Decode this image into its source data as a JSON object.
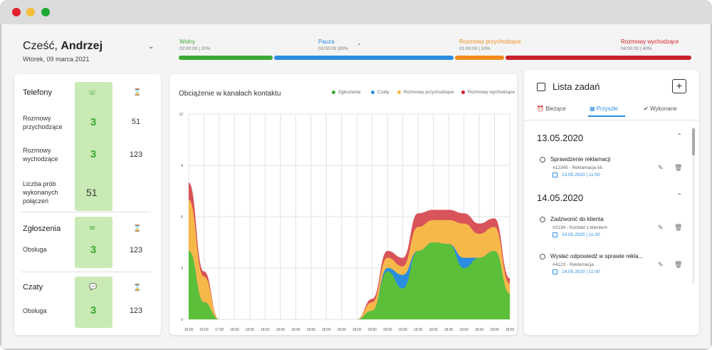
{
  "header": {
    "greeting_prefix": "Cześć, ",
    "greeting_name": "Andrzej",
    "date": "Wtorek, 09 marca 2021"
  },
  "statuses": [
    {
      "label": "Wolny",
      "time": "02:00:00 | 20%",
      "color": "#3aaa35"
    },
    {
      "label": "Pauza",
      "time": "03:00:00 |30%",
      "color": "#2a8de0"
    },
    {
      "label": "Rozmowy przychodzące",
      "time": "01:00:00 | 10%",
      "color": "#f08c1e"
    },
    {
      "label": "Rozmowy wychodzące",
      "time": "04:00:00 | 40%",
      "color": "#d0202a"
    }
  ],
  "left": {
    "phones": {
      "title": "Telefony",
      "rows": [
        {
          "label": "Rozmowy przychodzące",
          "count": "3",
          "value": "51"
        },
        {
          "label": "Rozmowy wychodzące",
          "count": "3",
          "value": "123"
        },
        {
          "label": "Liczba prób wykonanych połączeń",
          "value": "51"
        }
      ]
    },
    "tickets": {
      "title": "Zgłoszenia",
      "label": "Obsługa",
      "count": "3",
      "value": "123"
    },
    "chats": {
      "title": "Czaty",
      "label": "Obsługa",
      "count": "3",
      "value": "123"
    }
  },
  "chart": {
    "title": "Obciążenie w kanałach kontaktu",
    "legend": [
      "Zgłoszenia",
      "Czaty",
      "Rozmowy przychodzące",
      "Rozmowy wychodzące"
    ],
    "colors": [
      "#5cbf3a",
      "#2a8de0",
      "#f7b84a",
      "#d9535a"
    ]
  },
  "chart_data": {
    "type": "area",
    "title": "Obciążenie w kanałach kontaktu",
    "y_ticks": [
      "0",
      "3",
      "6",
      "9",
      "12"
    ],
    "ylim": [
      0,
      12
    ],
    "x_ticks": [
      "15:00",
      "16:00",
      "17:00",
      "18:00",
      "18:00",
      "18:00",
      "18:00",
      "18:00",
      "18:00",
      "18:00",
      "18:00",
      "18:00",
      "18:00",
      "18:00",
      "18:00",
      "18:00",
      "18:00",
      "18:00",
      "18:00",
      "18:00",
      "18:00",
      "18:00"
    ],
    "x": [
      0,
      1,
      2,
      3,
      4,
      5,
      6,
      7,
      8,
      9,
      10,
      11,
      12,
      13,
      14,
      15,
      16,
      17,
      18,
      19,
      20,
      21
    ],
    "series": [
      {
        "name": "Zgłoszenia",
        "values": [
          4.0,
          1.0,
          0.0,
          0,
          0,
          0,
          0,
          0,
          0,
          0,
          0,
          0,
          0.5,
          2.8,
          1.8,
          4.0,
          4.5,
          4.4,
          3.0,
          3.6,
          4.0,
          1.5
        ]
      },
      {
        "name": "Czaty",
        "values": [
          0.0,
          0.0,
          0.0,
          0,
          0,
          0,
          0,
          0,
          0,
          0,
          0,
          0,
          0.0,
          0.2,
          0.8,
          0.0,
          0.0,
          0.0,
          0.6,
          0.0,
          0.0,
          0.0
        ]
      },
      {
        "name": "Rozmowy przychodzące",
        "values": [
          3.0,
          1.5,
          0.0,
          0,
          0,
          0,
          0,
          0,
          0,
          0,
          0,
          0,
          0.5,
          0.6,
          0.5,
          1.4,
          1.3,
          1.4,
          2.0,
          1.4,
          1.4,
          0.6
        ]
      },
      {
        "name": "Rozmowy wychodzące",
        "values": [
          1.0,
          0.3,
          0.0,
          0,
          0,
          0,
          0,
          0,
          0,
          0,
          0,
          0,
          0.2,
          0.4,
          0.5,
          0.8,
          0.6,
          0.6,
          0.6,
          0.6,
          0.5,
          0.3
        ]
      }
    ],
    "grid": true
  },
  "tasks": {
    "title": "Lista zadań",
    "tabs": [
      "Bieżące",
      "Przyszłe",
      "Wykonane"
    ],
    "groups": [
      {
        "date": "13.05.2020",
        "items": [
          {
            "name": "Sprawdzenie reklamacji",
            "sub": "#12345 - Reklamacja kli.",
            "when": "13.05.2020 | 11:00"
          }
        ]
      },
      {
        "date": "14.05.2020",
        "items": [
          {
            "name": "Zadzwonić do klienta",
            "sub": "#2134 - Kontakt z klientem",
            "when": "14.05.2020 | 11:00"
          },
          {
            "name": "Wysłać odpowiedź w sprawie rekla...",
            "sub": "#4123 - Reklamacja",
            "when": "14.05.2020 | 11:00"
          }
        ]
      }
    ]
  }
}
